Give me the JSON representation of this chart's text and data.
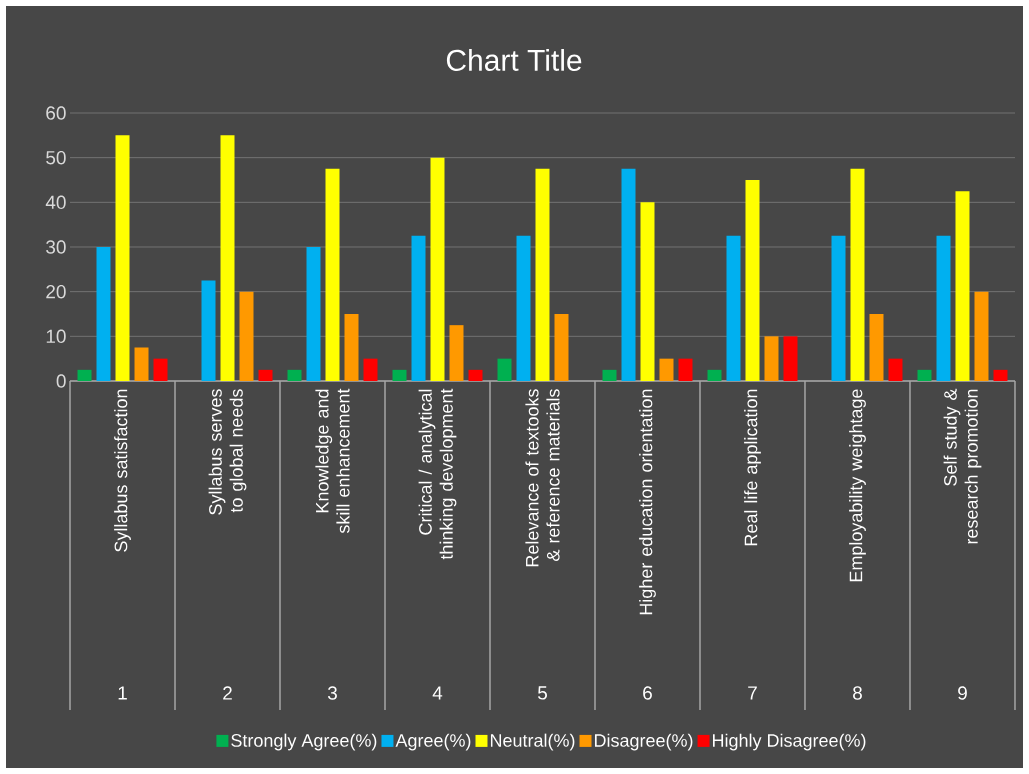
{
  "chart_data": {
    "type": "bar",
    "title": "Chart Title",
    "categories": [
      "Syllabus satisfaction",
      "Syllabus serves to global needs",
      "Knowledge and skill enhancement",
      "Critical / analytical thinking development",
      "Relevance of textooks & reference materials",
      "Higher education orientation",
      "Real life application",
      "Employability weightage",
      "Self study & research promotion"
    ],
    "annotations": [
      "1",
      "2",
      "3",
      "4",
      "5",
      "6",
      "7",
      "8",
      "9"
    ],
    "series": [
      {
        "name": "Strongly Agree(%)",
        "color": "#00b050",
        "values": [
          2.5,
          0,
          2.5,
          2.5,
          5,
          2.5,
          2.5,
          0,
          2.5
        ]
      },
      {
        "name": "Agree(%)",
        "color": "#00b0f0",
        "values": [
          30,
          22.5,
          30,
          32.5,
          32.5,
          47.5,
          32.5,
          32.5,
          32.5
        ]
      },
      {
        "name": "Neutral(%)",
        "color": "#ffff00",
        "values": [
          55,
          55,
          47.5,
          50,
          47.5,
          40,
          45,
          47.5,
          42.5
        ]
      },
      {
        "name": "Disagree(%)",
        "color": "#ff9900",
        "values": [
          7.5,
          20,
          15,
          12.5,
          15,
          5,
          10,
          15,
          20
        ]
      },
      {
        "name": "Highly Disagree(%)",
        "color": "#ff0000",
        "values": [
          5,
          2.5,
          5,
          2.5,
          0,
          5,
          10,
          5,
          2.5
        ]
      }
    ],
    "ylim": [
      0,
      60
    ],
    "yticks": [
      0,
      10,
      20,
      30,
      40,
      50,
      60
    ],
    "grid": "y",
    "legend": "bottom"
  }
}
